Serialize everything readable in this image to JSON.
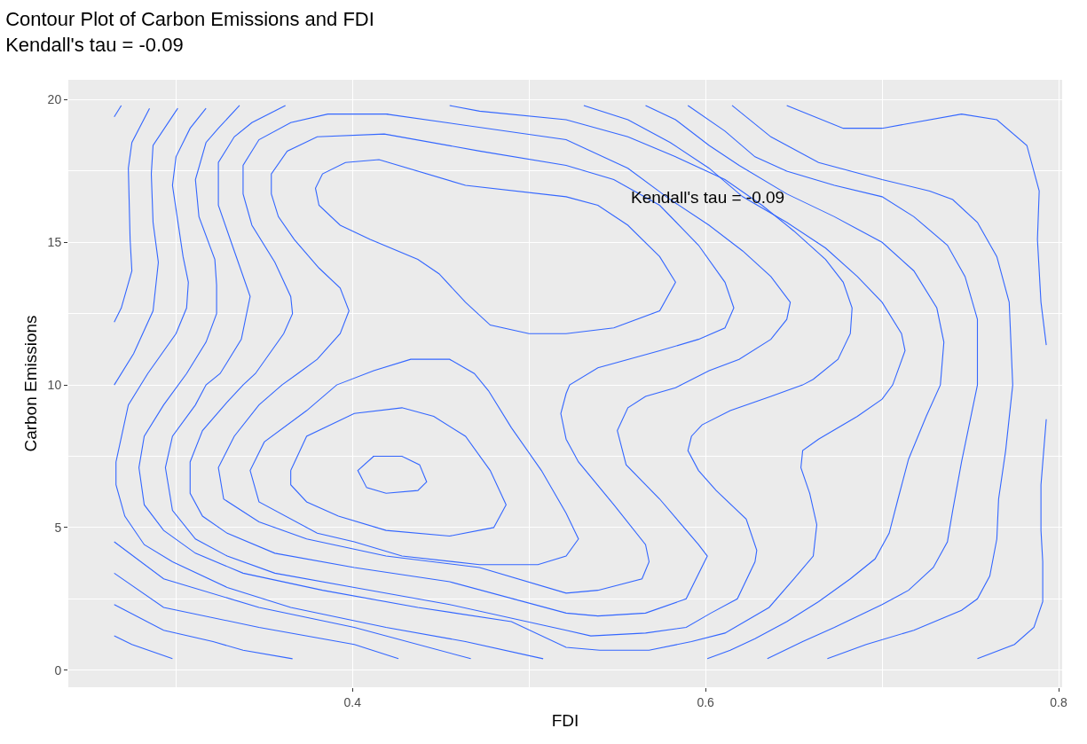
{
  "chart_data": {
    "type": "line",
    "title": "Contour Plot of Carbon Emissions and FDI",
    "subtitle": "Kendall's tau = -0.09",
    "xlabel": "FDI",
    "ylabel": "Carbon Emissions",
    "annotations": [
      "Kendall's tau = -0.09"
    ],
    "xlim": [
      0.239,
      0.802
    ],
    "ylim": [
      -0.6,
      20.7
    ],
    "xticks": [
      0.4,
      0.6,
      0.8
    ],
    "yticks": [
      0,
      5,
      10,
      15,
      20
    ],
    "grid": true,
    "marker": "none",
    "line_style": "solid",
    "series": [
      {
        "color": "#3366ff",
        "x": [
          0.269,
          0.265
        ],
        "values": [
          19.8,
          19.4
        ]
      },
      {
        "color": "#3366ff",
        "x": [
          0.285,
          0.275,
          0.273,
          0.274,
          0.275,
          0.269,
          0.265
        ],
        "values": [
          19.7,
          18.5,
          17.6,
          15.1,
          14.0,
          12.7,
          12.2
        ]
      },
      {
        "color": "#3366ff",
        "x": [
          0.301,
          0.287,
          0.286,
          0.287,
          0.29,
          0.287,
          0.276,
          0.265
        ],
        "values": [
          19.7,
          18.4,
          17.4,
          15.7,
          14.3,
          12.6,
          11.1,
          10.0
        ]
      },
      {
        "color": "#3366ff",
        "x": [
          0.317,
          0.308,
          0.3,
          0.298,
          0.304,
          0.307,
          0.306,
          0.3,
          0.284,
          0.273,
          0.266,
          0.266,
          0.271,
          0.282,
          0.298,
          0.329,
          0.365,
          0.419,
          0.464,
          0.508
        ],
        "values": [
          19.7,
          19.0,
          18.0,
          17.0,
          14.5,
          13.6,
          12.7,
          11.8,
          10.4,
          9.3,
          7.3,
          6.5,
          5.4,
          4.4,
          3.8,
          2.9,
          2.2,
          1.5,
          1.0,
          0.4
        ]
      },
      {
        "color": "#3366ff",
        "x": [
          0.265,
          0.275,
          0.298
        ],
        "values": [
          1.2,
          0.9,
          0.4
        ]
      },
      {
        "color": "#3366ff",
        "x": [
          0.265,
          0.293,
          0.321,
          0.338,
          0.366
        ],
        "values": [
          2.3,
          1.4,
          1.0,
          0.7,
          0.4
        ]
      },
      {
        "color": "#3366ff",
        "x": [
          0.265,
          0.293,
          0.347,
          0.401,
          0.426
        ],
        "values": [
          3.4,
          2.2,
          1.5,
          0.9,
          0.4
        ]
      },
      {
        "color": "#3366ff",
        "x": [
          0.265,
          0.293,
          0.347,
          0.401,
          0.467
        ],
        "values": [
          4.5,
          3.2,
          2.2,
          1.5,
          0.4
        ]
      },
      {
        "color": "#3366ff",
        "x": [
          0.336,
          0.324,
          0.317,
          0.311,
          0.313,
          0.322,
          0.323,
          0.323,
          0.317,
          0.306,
          0.293,
          0.282,
          0.279,
          0.282,
          0.293,
          0.311,
          0.338,
          0.383,
          0.437,
          0.49,
          0.521,
          0.54,
          0.568,
          0.592,
          0.611,
          0.636,
          0.65,
          0.661,
          0.663,
          0.659,
          0.654,
          0.655,
          0.664,
          0.686,
          0.7,
          0.706,
          0.713,
          0.711,
          0.7,
          0.686,
          0.668,
          0.646,
          0.621,
          0.602,
          0.58,
          0.556,
          0.531
        ],
        "values": [
          19.8,
          19.0,
          18.5,
          17.2,
          15.9,
          14.4,
          13.5,
          12.5,
          11.5,
          10.4,
          9.3,
          8.2,
          7.1,
          5.8,
          4.9,
          4.1,
          3.4,
          2.8,
          2.2,
          1.7,
          0.8,
          0.7,
          0.7,
          1.0,
          1.3,
          2.2,
          3.2,
          4.0,
          5.1,
          6.2,
          7.1,
          7.7,
          8.1,
          8.9,
          9.5,
          10.0,
          11.2,
          11.8,
          12.9,
          13.8,
          14.8,
          15.7,
          16.6,
          17.6,
          18.5,
          19.3,
          19.8
        ]
      },
      {
        "color": "#3366ff",
        "x": [
          0.362,
          0.343,
          0.333,
          0.324,
          0.324,
          0.333,
          0.342,
          0.337,
          0.325,
          0.317,
          0.311,
          0.298,
          0.294,
          0.298,
          0.311,
          0.329,
          0.356,
          0.401,
          0.455,
          0.521,
          0.535,
          0.566,
          0.589,
          0.603,
          0.618,
          0.628,
          0.629,
          0.623,
          0.606,
          0.596,
          0.59,
          0.592,
          0.598,
          0.614,
          0.637,
          0.655,
          0.661,
          0.675,
          0.682,
          0.683,
          0.678,
          0.668,
          0.65,
          0.632,
          0.611,
          0.583,
          0.556,
          0.521,
          0.472,
          0.455
        ],
        "values": [
          19.8,
          19.2,
          18.7,
          17.8,
          16.3,
          14.7,
          13.1,
          11.6,
          10.4,
          10.0,
          9.3,
          8.2,
          7.1,
          5.6,
          4.6,
          4.0,
          3.4,
          2.9,
          2.3,
          1.4,
          1.2,
          1.3,
          1.5,
          2.0,
          2.5,
          3.8,
          4.2,
          5.3,
          6.3,
          7.0,
          7.7,
          8.2,
          8.6,
          9.1,
          9.6,
          10.0,
          10.2,
          10.9,
          11.8,
          12.7,
          13.6,
          14.4,
          15.4,
          16.3,
          17.2,
          18.0,
          18.7,
          19.3,
          19.6,
          19.8
        ]
      },
      {
        "color": "#3366ff",
        "x": [
          0.521,
          0.419,
          0.386,
          0.365,
          0.347,
          0.338,
          0.338,
          0.343,
          0.356,
          0.365,
          0.366,
          0.361,
          0.345,
          0.338,
          0.329,
          0.315,
          0.308,
          0.308,
          0.315,
          0.329,
          0.356,
          0.401,
          0.455,
          0.521,
          0.539,
          0.566,
          0.589,
          0.601,
          0.596,
          0.574,
          0.555,
          0.55,
          0.556,
          0.566,
          0.583,
          0.602,
          0.619,
          0.637,
          0.646,
          0.648,
          0.637,
          0.621,
          0.602,
          0.58,
          0.556,
          0.521,
          0.419
        ],
        "values": [
          18.6,
          19.5,
          19.5,
          19.2,
          18.6,
          17.7,
          16.7,
          15.6,
          14.3,
          13.1,
          12.5,
          11.8,
          10.4,
          10.0,
          9.4,
          8.4,
          7.3,
          6.2,
          5.4,
          4.8,
          4.1,
          3.6,
          3.1,
          2.0,
          1.9,
          2.0,
          2.5,
          4.0,
          4.4,
          6.0,
          7.2,
          8.4,
          9.2,
          9.6,
          9.9,
          10.5,
          10.9,
          11.6,
          12.3,
          12.9,
          13.8,
          14.7,
          15.6,
          16.5,
          17.6,
          18.6,
          19.5
        ]
      },
      {
        "color": "#3366ff",
        "x": [
          0.521,
          0.472,
          0.418,
          0.38,
          0.363,
          0.354,
          0.354,
          0.358,
          0.367,
          0.381,
          0.393,
          0.398,
          0.393,
          0.38,
          0.369,
          0.36,
          0.347,
          0.333,
          0.324,
          0.327,
          0.347,
          0.374,
          0.419,
          0.472,
          0.521,
          0.539,
          0.564,
          0.568,
          0.566,
          0.548,
          0.528,
          0.521,
          0.518,
          0.521,
          0.523,
          0.539,
          0.574,
          0.596,
          0.611,
          0.616,
          0.611,
          0.596,
          0.574,
          0.548,
          0.521,
          0.472
        ],
        "values": [
          17.7,
          18.2,
          18.8,
          18.7,
          18.2,
          17.4,
          16.7,
          15.9,
          15.1,
          14.1,
          13.4,
          12.6,
          11.8,
          10.9,
          10.4,
          10.0,
          9.3,
          8.2,
          7.1,
          6.0,
          5.2,
          4.6,
          4.0,
          3.6,
          2.7,
          2.8,
          3.2,
          3.8,
          4.4,
          5.8,
          7.3,
          8.1,
          9.0,
          9.7,
          10.0,
          10.6,
          11.2,
          11.6,
          12.0,
          12.7,
          13.6,
          14.9,
          16.3,
          17.2,
          17.7,
          18.2
        ]
      },
      {
        "color": "#3366ff",
        "x": [
          0.521,
          0.464,
          0.415,
          0.396,
          0.383,
          0.379,
          0.381,
          0.393,
          0.41,
          0.437,
          0.449,
          0.464,
          0.478,
          0.5,
          0.521,
          0.548,
          0.574,
          0.583,
          0.574,
          0.556,
          0.539,
          0.521,
          0.464
        ],
        "values": [
          16.6,
          17.0,
          17.9,
          17.8,
          17.4,
          16.9,
          16.3,
          15.6,
          15.1,
          14.4,
          13.9,
          12.9,
          12.1,
          11.8,
          11.8,
          12.0,
          12.6,
          13.6,
          14.5,
          15.6,
          16.3,
          16.6,
          17.0
        ]
      },
      {
        "color": "#3366ff",
        "x": [
          0.35,
          0.374,
          0.391,
          0.412,
          0.433,
          0.449,
          0.455,
          0.469,
          0.477,
          0.49,
          0.507,
          0.521,
          0.528,
          0.521,
          0.505,
          0.472,
          0.428,
          0.401,
          0.38,
          0.347,
          0.342,
          0.35,
          0.374
        ],
        "values": [
          8.0,
          9.1,
          10.0,
          10.5,
          10.9,
          10.9,
          10.9,
          10.4,
          9.8,
          8.5,
          7.0,
          5.5,
          4.6,
          4.0,
          3.7,
          3.7,
          4.0,
          4.5,
          4.8,
          5.9,
          7.0,
          8.0,
          9.1
        ]
      },
      {
        "color": "#3366ff",
        "x": [
          0.365,
          0.374,
          0.401,
          0.428,
          0.446,
          0.464,
          0.478,
          0.487,
          0.48,
          0.455,
          0.419,
          0.392,
          0.374,
          0.365,
          0.365,
          0.374
        ],
        "values": [
          7.0,
          8.2,
          9.0,
          9.2,
          8.9,
          8.2,
          7.0,
          5.8,
          5.0,
          4.7,
          4.9,
          5.4,
          5.9,
          6.5,
          7.0,
          8.2
        ]
      },
      {
        "color": "#3366ff",
        "x": [
          0.403,
          0.412,
          0.428,
          0.438,
          0.442,
          0.437,
          0.419,
          0.408,
          0.403,
          0.412
        ],
        "values": [
          7.0,
          7.5,
          7.5,
          7.2,
          6.6,
          6.3,
          6.2,
          6.4,
          7.0,
          7.5
        ]
      },
      {
        "color": "#3366ff",
        "x": [
          0.566,
          0.583,
          0.602,
          0.619,
          0.646,
          0.673,
          0.7,
          0.718,
          0.731,
          0.735,
          0.733,
          0.725,
          0.715,
          0.709,
          0.704,
          0.696,
          0.682,
          0.664,
          0.646,
          0.628,
          0.614,
          0.601
        ],
        "values": [
          19.8,
          19.3,
          18.4,
          17.7,
          16.7,
          15.9,
          15.0,
          14.0,
          12.7,
          11.5,
          10.0,
          8.9,
          7.4,
          6.0,
          4.8,
          3.9,
          3.2,
          2.4,
          1.7,
          1.1,
          0.7,
          0.4
        ]
      },
      {
        "color": "#3366ff",
        "x": [
          0.59,
          0.611,
          0.628,
          0.646,
          0.673,
          0.7,
          0.718,
          0.737,
          0.747,
          0.754,
          0.754,
          0.745,
          0.74,
          0.737,
          0.729,
          0.715,
          0.7,
          0.673,
          0.655,
          0.635
        ],
        "values": [
          19.8,
          18.9,
          18.0,
          17.5,
          17.0,
          16.6,
          15.9,
          14.9,
          13.8,
          12.3,
          10.0,
          7.3,
          5.6,
          4.5,
          3.6,
          2.8,
          2.3,
          1.5,
          1.0,
          0.4
        ]
      },
      {
        "color": "#3366ff",
        "x": [
          0.615,
          0.637,
          0.664,
          0.7,
          0.727,
          0.74,
          0.754,
          0.765,
          0.772,
          0.774,
          0.77,
          0.766,
          0.765,
          0.761,
          0.754,
          0.745,
          0.718,
          0.691,
          0.669
        ],
        "values": [
          19.8,
          18.7,
          17.8,
          17.2,
          16.8,
          16.5,
          15.7,
          14.5,
          12.9,
          10.0,
          7.7,
          6.0,
          4.6,
          3.3,
          2.5,
          2.1,
          1.4,
          0.9,
          0.4
        ]
      },
      {
        "color": "#3366ff",
        "x": [
          0.646,
          0.678,
          0.7,
          0.745,
          0.765,
          0.782,
          0.789,
          0.788,
          0.79,
          0.793
        ],
        "values": [
          19.8,
          19.0,
          19.0,
          19.5,
          19.3,
          18.4,
          16.8,
          15.1,
          12.9,
          11.4
        ]
      },
      {
        "color": "#3366ff",
        "x": [
          0.793,
          0.79,
          0.79,
          0.791,
          0.791,
          0.786,
          0.775,
          0.754
        ],
        "values": [
          8.8,
          6.5,
          4.9,
          3.8,
          2.4,
          1.5,
          0.9,
          0.4
        ]
      }
    ]
  }
}
